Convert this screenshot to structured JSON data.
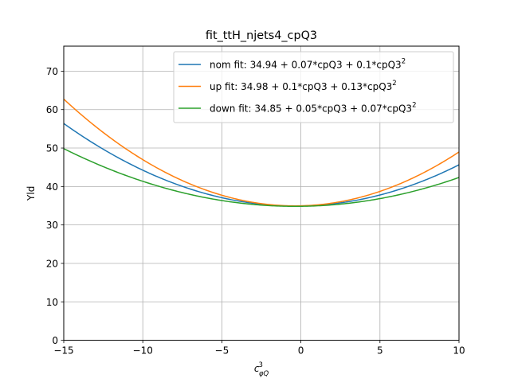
{
  "chart_data": {
    "type": "line",
    "title": "fit_ttH_njets4_cpQ3",
    "xlabel": {
      "base": "c",
      "sup": "3",
      "sub": "φQ"
    },
    "ylabel": "Yld",
    "xlim": [
      -15,
      10
    ],
    "ylim": [
      0,
      76.5
    ],
    "xticks": [
      -15,
      -10,
      -5,
      0,
      5,
      10
    ],
    "xtick_labels": [
      "−15",
      "−10",
      "−5",
      "0",
      "5",
      "10"
    ],
    "yticks": [
      0,
      10,
      20,
      30,
      40,
      50,
      60,
      70
    ],
    "ytick_labels": [
      "0",
      "10",
      "20",
      "30",
      "40",
      "50",
      "60",
      "70"
    ],
    "grid": true,
    "legend_position": "top-right",
    "x": [
      -15,
      -12.5,
      -10,
      -7.5,
      -5,
      -2.5,
      0,
      2.5,
      5,
      7.5,
      10
    ],
    "series": [
      {
        "name": "nom fit: 34.94 + 0.07*cpQ3 + 0.1*cpQ3",
        "name_sup": "2",
        "color": "#1f77b4",
        "coefficients": [
          34.94,
          0.07,
          0.1
        ],
        "values": [
          56.4,
          49.6,
          44.3,
          40.0,
          37.2,
          35.4,
          34.94,
          35.7,
          37.8,
          41.0,
          45.6
        ]
      },
      {
        "name": "up fit: 34.98 + 0.1*cpQ3 + 0.13*cpQ3",
        "name_sup": "2",
        "color": "#ff7f0e",
        "coefficients": [
          34.98,
          0.1,
          0.13
        ],
        "values": [
          63.2,
          54.1,
          47.0,
          41.5,
          37.6,
          35.4,
          34.98,
          36.1,
          38.8,
          43.3,
          49.2
        ]
      },
      {
        "name": "down fit: 34.85 + 0.05*cpQ3 + 0.07*cpQ3",
        "name_sup": "2",
        "color": "#2ca02c",
        "coefficients": [
          34.85,
          0.05,
          0.07
        ],
        "values": [
          50.2,
          45.2,
          41.4,
          38.4,
          36.4,
          35.2,
          34.85,
          35.4,
          36.8,
          39.1,
          42.3
        ]
      }
    ]
  }
}
